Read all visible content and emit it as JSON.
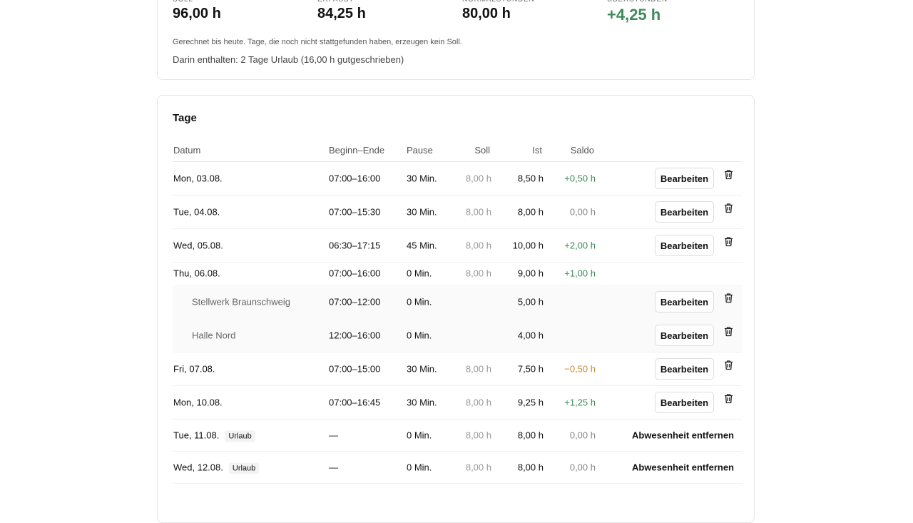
{
  "summary": {
    "stats": [
      {
        "label": "SOLL",
        "value": "96,00 h"
      },
      {
        "label": "ERFASST",
        "value": "84,25 h"
      },
      {
        "label": "NORMALSTUNDEN",
        "value": "80,00 h"
      },
      {
        "label": "ÜBERSTUNDEN",
        "value": "+4,25 h"
      }
    ],
    "note": "Gerechnet bis heute. Tage, die noch nicht stattgefunden haben, erzeugen kein Soll.",
    "included": "Darin enthalten: 2 Tage Urlaub (16,00 h gutgeschrieben)"
  },
  "days": {
    "title": "Tage",
    "columns": [
      "Datum",
      "Beginn–Ende",
      "Pause",
      "Soll",
      "Ist",
      "Saldo"
    ],
    "rows": [
      {
        "date": "Mon, 03.08.",
        "time": "07:00–16:00",
        "pause": "30 Min.",
        "soll": "8,00 h",
        "ist": "8,50 h",
        "saldo": "+0,50 h",
        "edit": "Bearbeiten"
      },
      {
        "date": "Tue, 04.08.",
        "time": "07:00–15:30",
        "pause": "30 Min.",
        "soll": "8,00 h",
        "ist": "8,00 h",
        "saldo": "0,00 h",
        "edit": "Bearbeiten"
      },
      {
        "date": "Wed, 05.08.",
        "time": "06:30–17:15",
        "pause": "45 Min.",
        "soll": "8,00 h",
        "ist": "10,00 h",
        "saldo": "+2,00 h",
        "edit": "Bearbeiten"
      },
      {
        "date": "Thu, 06.08.",
        "time": "07:00–16:00",
        "pause": "0 Min.",
        "soll": "8,00 h",
        "ist": "9,00 h",
        "saldo": "+1,00 h"
      },
      {
        "location": "Stellwerk Braunschweig",
        "time": "07:00–12:00",
        "pause": "0 Min.",
        "ist": "5,00 h",
        "edit": "Bearbeiten"
      },
      {
        "location": "Halle Nord",
        "time": "12:00–16:00",
        "pause": "0 Min.",
        "ist": "4,00 h",
        "edit": "Bearbeiten"
      },
      {
        "date": "Fri, 07.08.",
        "time": "07:00–15:00",
        "pause": "30 Min.",
        "soll": "8,00 h",
        "ist": "7,50 h",
        "saldo": "−0,50 h",
        "edit": "Bearbeiten"
      },
      {
        "date": "Mon, 10.08.",
        "time": "07:00–16:45",
        "pause": "30 Min.",
        "soll": "8,00 h",
        "ist": "9,25 h",
        "saldo": "+1,25 h",
        "edit": "Bearbeiten"
      },
      {
        "date": "Tue, 11.08.",
        "badge": "Urlaub",
        "time": "—",
        "pause": "0 Min.",
        "soll": "8,00 h",
        "ist": "8,00 h",
        "saldo": "0,00 h",
        "remove": "Abwesenheit entfernen"
      },
      {
        "date": "Wed, 12.08.",
        "badge": "Urlaub",
        "time": "—",
        "pause": "0 Min.",
        "soll": "8,00 h",
        "ist": "8,00 h",
        "saldo": "0,00 h",
        "remove": "Abwesenheit entfernen"
      }
    ]
  }
}
